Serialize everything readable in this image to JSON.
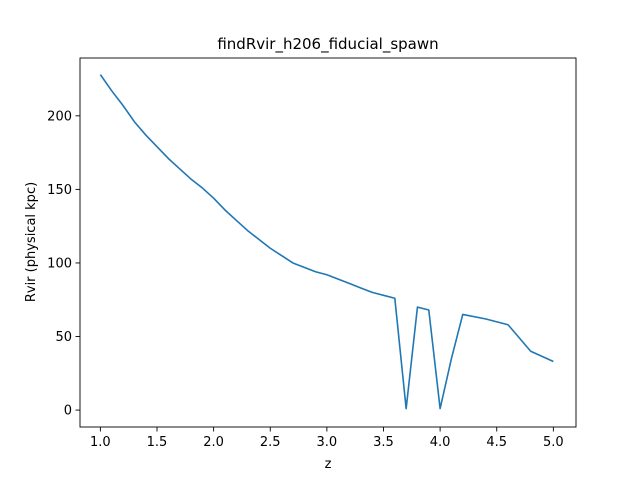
{
  "chart_data": {
    "type": "line",
    "title": "findRvir_h206_fiducial_spawn",
    "xlabel": "z",
    "ylabel": "Rvir (physical kpc)",
    "xlim": [
      0.82,
      5.2
    ],
    "ylim": [
      -11.5,
      239.3
    ],
    "xticks": [
      {
        "value": 1.0,
        "label": "1.0"
      },
      {
        "value": 1.5,
        "label": "1.5"
      },
      {
        "value": 2.0,
        "label": "2.0"
      },
      {
        "value": 2.5,
        "label": "2.5"
      },
      {
        "value": 3.0,
        "label": "3.0"
      },
      {
        "value": 3.5,
        "label": "3.5"
      },
      {
        "value": 4.0,
        "label": "4.0"
      },
      {
        "value": 4.5,
        "label": "4.5"
      },
      {
        "value": 5.0,
        "label": "5.0"
      }
    ],
    "yticks": [
      {
        "value": 0,
        "label": "0"
      },
      {
        "value": 50,
        "label": "50"
      },
      {
        "value": 100,
        "label": "100"
      },
      {
        "value": 150,
        "label": "150"
      },
      {
        "value": 200,
        "label": "200"
      }
    ],
    "grid": false,
    "series": [
      {
        "color": "#1f77b4",
        "x": [
          1.0,
          1.1,
          1.2,
          1.3,
          1.4,
          1.5,
          1.6,
          1.7,
          1.8,
          1.9,
          2.0,
          2.1,
          2.2,
          2.3,
          2.4,
          2.5,
          2.6,
          2.7,
          2.8,
          2.9,
          3.0,
          3.1,
          3.2,
          3.3,
          3.4,
          3.5,
          3.6,
          3.7,
          3.8,
          3.9,
          4.0,
          4.1,
          4.2,
          4.4,
          4.6,
          4.8,
          5.0
        ],
        "y": [
          228,
          217,
          207,
          196,
          187,
          179,
          171,
          164,
          157,
          151,
          144,
          136,
          129,
          122,
          116,
          110,
          105,
          100,
          97,
          94,
          92,
          89,
          86,
          83,
          80,
          78,
          76,
          1,
          70,
          68,
          1,
          35,
          65,
          62,
          58,
          40,
          33
        ]
      }
    ]
  }
}
